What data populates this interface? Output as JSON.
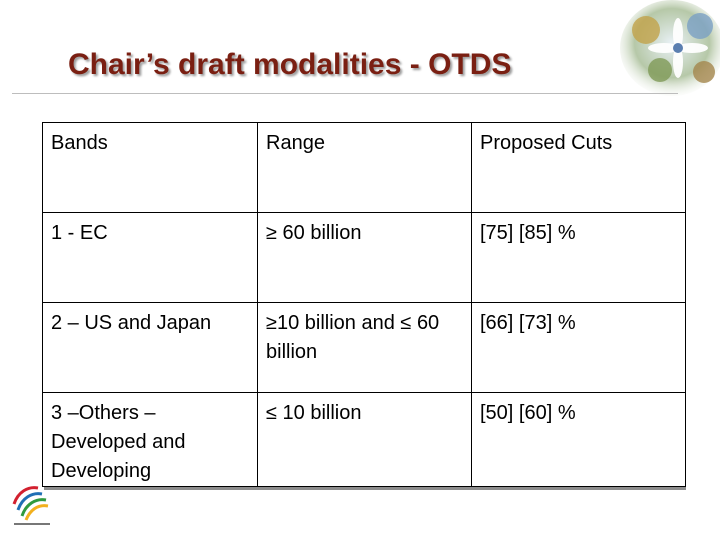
{
  "slide": {
    "title": "Chair’s draft modalities - OTDS"
  },
  "table": {
    "header": [
      "Bands",
      "Range",
      "Proposed Cuts"
    ],
    "rows": [
      [
        "1 - EC",
        "≥ 60 billion",
        "[75] [85] %"
      ],
      [
        "2 – US and Japan",
        "≥10 billion and ≤ 60 billion",
        "[66] [73] %"
      ],
      [
        "3 –Others – Developed and Developing",
        "≤ 10 billion",
        "[50] [60] %"
      ]
    ]
  },
  "colors": {
    "title": "#7a1f12",
    "border": "#000000",
    "background": "#ffffff"
  },
  "icons": [
    "corner-decoration-image",
    "wto-logo-icon"
  ]
}
